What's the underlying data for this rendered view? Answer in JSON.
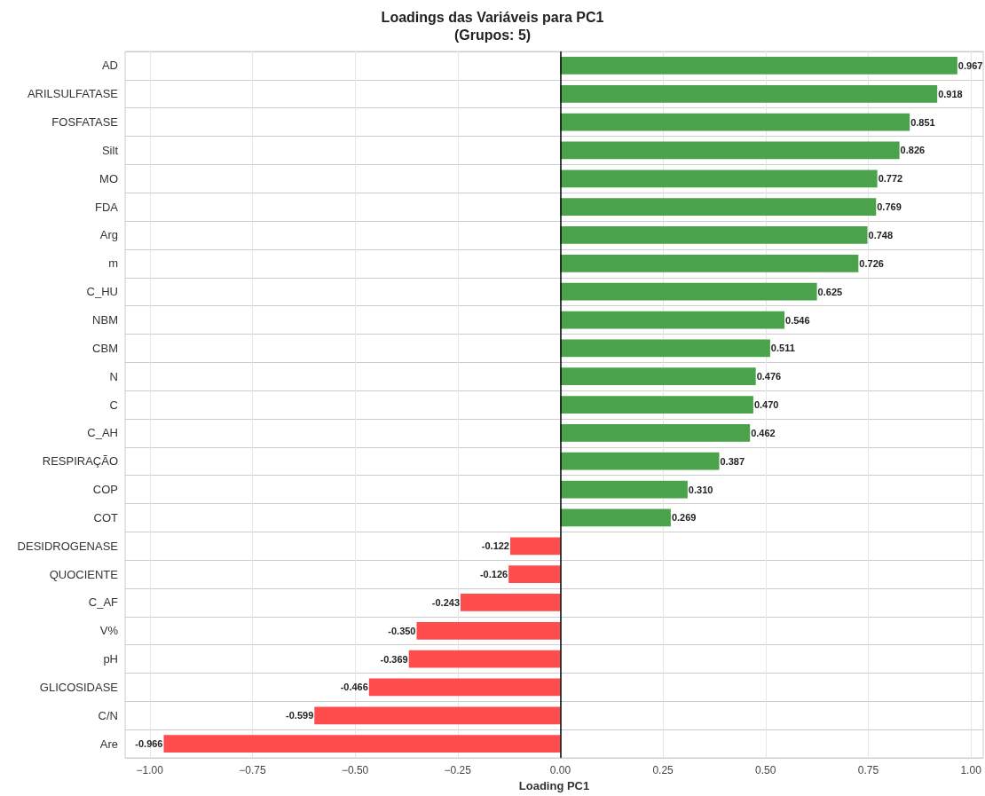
{
  "chart_data": {
    "type": "bar",
    "orientation": "horizontal",
    "title": "Loadings das Variáveis para PC1\n(Grupos: 5)",
    "xlabel": "Loading PC1",
    "categories": [
      "AD",
      "ARILSULFATASE",
      "FOSFATASE",
      "Silt",
      "MO",
      "FDA",
      "Arg",
      "m",
      "C_HU",
      "NBM",
      "CBM",
      "N",
      "C",
      "C_AH",
      "RESPIRAÇÃO",
      "COP",
      "COT",
      "DESIDROGENASE",
      "QUOCIENTE",
      "C_AF",
      "V%",
      "pH",
      "GLICOSIDASE",
      "C/N",
      "Are"
    ],
    "values": [
      0.967,
      0.918,
      0.851,
      0.826,
      0.772,
      0.769,
      0.748,
      0.726,
      0.625,
      0.546,
      0.511,
      0.476,
      0.47,
      0.462,
      0.387,
      0.31,
      0.269,
      -0.122,
      -0.126,
      -0.243,
      -0.35,
      -0.369,
      -0.466,
      -0.599,
      -0.966
    ],
    "value_labels": [
      "0.967",
      "0.918",
      "0.851",
      "0.826",
      "0.772",
      "0.769",
      "0.748",
      "0.726",
      "0.625",
      "0.546",
      "0.511",
      "0.476",
      "0.470",
      "0.462",
      "0.387",
      "0.310",
      "0.269",
      "-0.122",
      "-0.126",
      "-0.243",
      "-0.350",
      "-0.369",
      "-0.466",
      "-0.599",
      "-0.966"
    ],
    "colors": [
      "#4aa34a",
      "#4aa34a",
      "#4aa34a",
      "#4aa34a",
      "#4aa34a",
      "#4aa34a",
      "#4aa34a",
      "#4aa34a",
      "#4aa34a",
      "#4aa34a",
      "#4aa34a",
      "#4aa34a",
      "#4aa34a",
      "#4aa34a",
      "#4aa34a",
      "#4aa34a",
      "#4aa34a",
      "#ff4c4c",
      "#ff4c4c",
      "#ff4c4c",
      "#ff4c4c",
      "#ff4c4c",
      "#ff4c4c",
      "#ff4c4c",
      "#ff4c4c"
    ],
    "xlim": [
      -1.06,
      1.03
    ],
    "xticks": [
      {
        "value": -1,
        "label": "−1.00"
      },
      {
        "value": -0.75,
        "label": "−0.75"
      },
      {
        "value": -0.5,
        "label": "−0.50"
      },
      {
        "value": -0.25,
        "label": "−0.25"
      },
      {
        "value": 0,
        "label": "0.00"
      },
      {
        "value": 0.25,
        "label": "0.25"
      },
      {
        "value": 0.5,
        "label": "0.50"
      },
      {
        "value": 0.75,
        "label": "0.75"
      },
      {
        "value": 1,
        "label": "1.00"
      }
    ],
    "ref_lines": [
      {
        "axis": "x",
        "value": 0,
        "color": "#000000"
      }
    ],
    "grid": true
  }
}
